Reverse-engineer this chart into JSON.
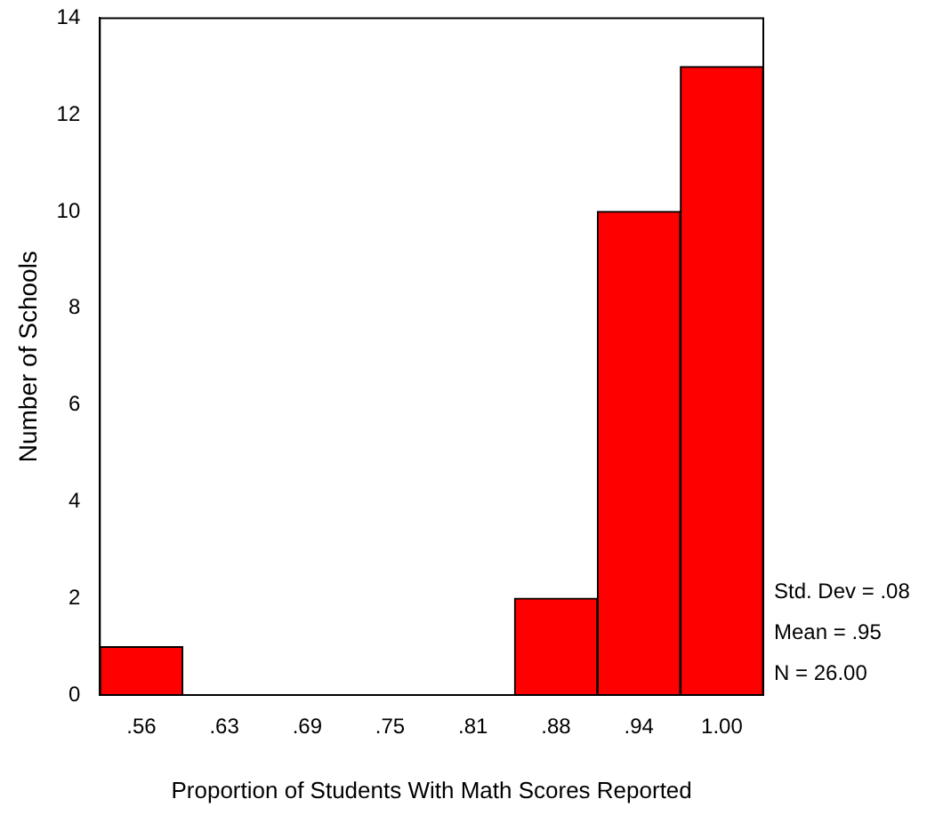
{
  "chart_data": {
    "type": "histogram",
    "xlabel": "Proportion of Students With Math Scores Reported",
    "ylabel": "Number of Schools",
    "bins": [
      0.53125,
      0.59375,
      0.65625,
      0.71875,
      0.78125,
      0.84375,
      0.90625,
      0.96875,
      1.03125
    ],
    "values": [
      1,
      0,
      0,
      0,
      0,
      2,
      10,
      13
    ],
    "color": "#ff0000",
    "xlim": [
      0.53125,
      1.03125
    ],
    "xticks": [
      {
        "value": 0.5625,
        "label": ".56"
      },
      {
        "value": 0.625,
        "label": ".63"
      },
      {
        "value": 0.6875,
        "label": ".69"
      },
      {
        "value": 0.75,
        "label": ".75"
      },
      {
        "value": 0.8125,
        "label": ".81"
      },
      {
        "value": 0.875,
        "label": ".88"
      },
      {
        "value": 0.9375,
        "label": ".94"
      },
      {
        "value": 1.0,
        "label": "1.00"
      }
    ],
    "ylim": [
      0,
      14
    ],
    "yticks": [
      0,
      2,
      4,
      6,
      8,
      10,
      12,
      14
    ],
    "annotations": [
      "Std. Dev = .08",
      "Mean = .95",
      "N = 26.00"
    ]
  }
}
